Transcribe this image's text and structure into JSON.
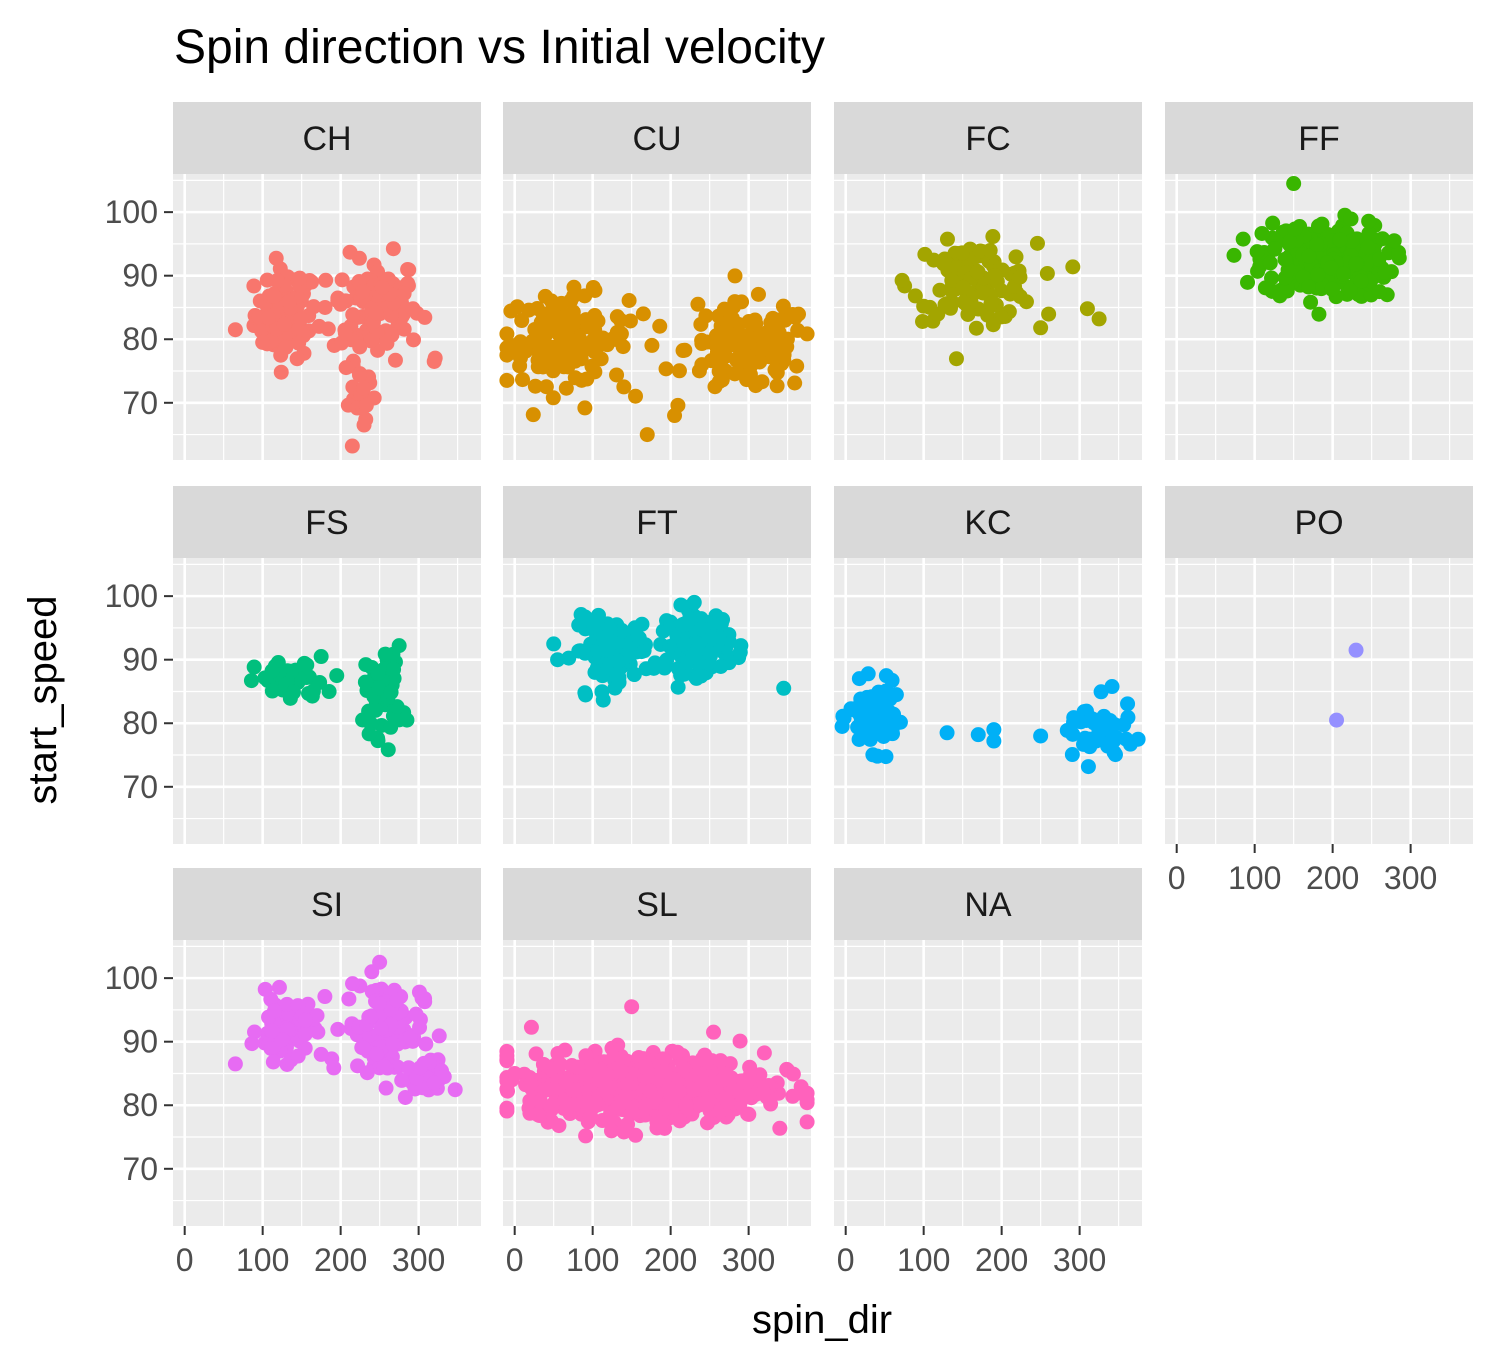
{
  "chart_data": {
    "type": "scatter",
    "title": "Spin direction vs Initial velocity",
    "xlabel": "spin_dir",
    "ylabel": "start_speed",
    "xlim": [
      -15,
      380
    ],
    "ylim": [
      61,
      106
    ],
    "x_ticks": [
      0,
      100,
      200,
      300
    ],
    "y_ticks": [
      70,
      80,
      90,
      100
    ],
    "grid": true,
    "facet_by": "pitch type",
    "panels": [
      {
        "label": "CH",
        "color": "#F8766D",
        "clusters": [
          {
            "cx": 130,
            "cy": 84,
            "sx": 20,
            "sy": 3.5,
            "n": 80
          },
          {
            "cx": 245,
            "cy": 85,
            "sx": 28,
            "sy": 4,
            "n": 120
          },
          {
            "cx": 225,
            "cy": 72,
            "sx": 10,
            "sy": 3,
            "n": 18
          }
        ],
        "points": [
          [
            65,
            81.5
          ],
          [
            180,
            85
          ],
          [
            320,
            76.5
          ],
          [
            230,
            66.5
          ],
          [
            215,
            63.2
          ],
          [
            200,
            85.5
          ],
          [
            100,
            79.5
          ]
        ]
      },
      {
        "label": "CU",
        "color": "#D89000",
        "clusters": [
          {
            "cx": 65,
            "cy": 80,
            "sx": 40,
            "sy": 3.5,
            "n": 130
          },
          {
            "cx": 300,
            "cy": 78.5,
            "sx": 40,
            "sy": 3.5,
            "n": 130
          }
        ],
        "points": [
          [
            170,
            65
          ],
          [
            90,
            69.2
          ],
          [
            140,
            72.5
          ],
          [
            205,
            68
          ],
          [
            240,
            76
          ],
          [
            165,
            84
          ],
          [
            235,
            85.5
          ],
          [
            125,
            80
          ]
        ]
      },
      {
        "label": "FC",
        "color": "#A3A500",
        "clusters": [
          {
            "cx": 165,
            "cy": 89,
            "sx": 40,
            "sy": 3,
            "n": 110
          }
        ],
        "points": [
          [
            310,
            84.8
          ],
          [
            325,
            83.2
          ],
          [
            250,
            81.8
          ],
          [
            100,
            85.2
          ]
        ]
      },
      {
        "label": "FF",
        "color": "#39B600",
        "clusters": [
          {
            "cx": 190,
            "cy": 92.5,
            "sx": 40,
            "sy": 3,
            "n": 280
          }
        ],
        "points": [
          [
            150,
            104.5
          ],
          [
            270,
            87
          ],
          [
            120,
            92
          ],
          [
            260,
            87.5
          ]
        ]
      },
      {
        "label": "FS",
        "color": "#00BF7D",
        "clusters": [
          {
            "cx": 135,
            "cy": 86.5,
            "sx": 22,
            "sy": 1.6,
            "n": 45
          },
          {
            "cx": 255,
            "cy": 85,
            "sx": 12,
            "sy": 3.5,
            "n": 45
          }
        ],
        "points": [
          [
            175,
            90.5
          ],
          [
            195,
            87.5
          ],
          [
            285,
            80.5
          ],
          [
            235,
            81
          ]
        ]
      },
      {
        "label": "FT",
        "color": "#00BFC4",
        "clusters": [
          {
            "cx": 125,
            "cy": 91.5,
            "sx": 25,
            "sy": 2.5,
            "n": 110
          },
          {
            "cx": 235,
            "cy": 93,
            "sx": 20,
            "sy": 2.5,
            "n": 150
          }
        ],
        "points": [
          [
            345,
            85.5
          ],
          [
            90,
            84.8
          ],
          [
            180,
            89.5
          ],
          [
            55,
            90
          ]
        ]
      },
      {
        "label": "KC",
        "color": "#00B0F6",
        "clusters": [
          {
            "cx": 35,
            "cy": 81,
            "sx": 15,
            "sy": 2.5,
            "n": 70
          },
          {
            "cx": 320,
            "cy": 78.5,
            "sx": 25,
            "sy": 2.5,
            "n": 50
          }
        ],
        "points": [
          [
            130,
            78.5
          ],
          [
            170,
            78.2
          ],
          [
            190,
            79
          ],
          [
            190,
            77.2
          ],
          [
            250,
            78
          ],
          [
            65,
            84.5
          ]
        ]
      },
      {
        "label": "PO",
        "color": "#9590FF",
        "clusters": [],
        "points": [
          [
            230,
            91.5
          ],
          [
            205,
            80.5
          ]
        ]
      },
      {
        "label": "SI",
        "color": "#E76BF3",
        "clusters": [
          {
            "cx": 130,
            "cy": 92,
            "sx": 18,
            "sy": 2.5,
            "n": 60
          },
          {
            "cx": 255,
            "cy": 92,
            "sx": 25,
            "sy": 4,
            "n": 110
          },
          {
            "cx": 305,
            "cy": 84,
            "sx": 15,
            "sy": 1.5,
            "n": 30
          }
        ],
        "points": [
          [
            65,
            86.5
          ],
          [
            250,
            102.5
          ],
          [
            240,
            101
          ],
          [
            175,
            88
          ],
          [
            320,
            83.5
          ]
        ]
      },
      {
        "label": "SL",
        "color": "#FF62BC",
        "clusters": [
          {
            "cx": 170,
            "cy": 83,
            "sx": 75,
            "sy": 2.6,
            "n": 700
          }
        ],
        "points": [
          [
            150,
            95.5
          ],
          [
            255,
            91.5
          ],
          [
            30,
            78.5
          ],
          [
            0,
            85
          ],
          [
            350,
            85.5
          ],
          [
            140,
            75.8
          ]
        ]
      },
      {
        "label": "NA",
        "color": "#999999",
        "clusters": [],
        "points": []
      }
    ]
  }
}
